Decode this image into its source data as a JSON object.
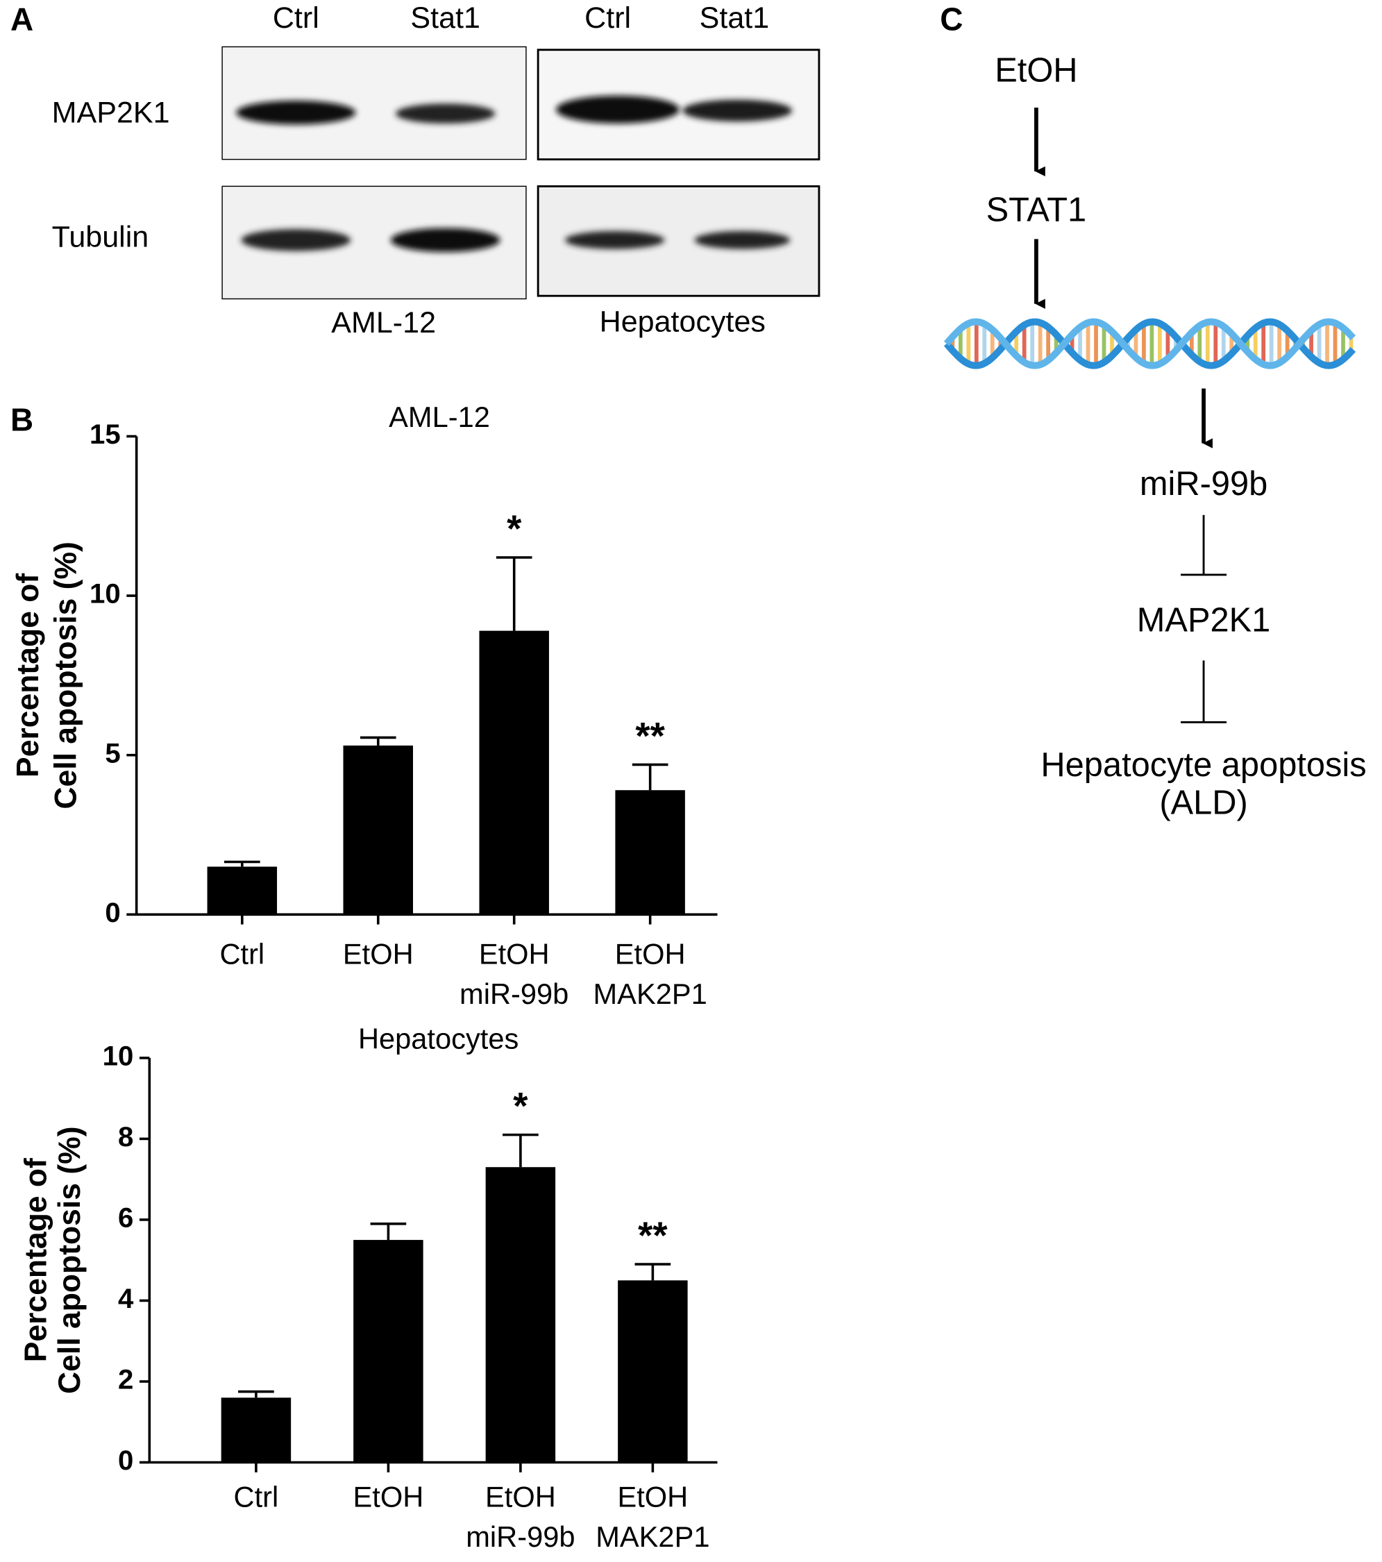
{
  "panel_a": {
    "label": "A",
    "columns": [
      "Ctrl",
      "Stat1",
      "Ctrl",
      "Stat1"
    ],
    "rows": [
      "MAP2K1",
      "Tubulin"
    ],
    "cell_lines": [
      "AML-12",
      "Hepatocytes"
    ]
  },
  "panel_b_label": "B",
  "chart_data": [
    {
      "type": "bar",
      "title": "AML-12",
      "ylabel": [
        "Percentage of",
        "Cell apoptosis (%)"
      ],
      "categories": [
        [
          "Ctrl"
        ],
        [
          "EtOH"
        ],
        [
          "EtOH",
          "miR-99b"
        ],
        [
          "EtOH",
          "MAK2P1"
        ]
      ],
      "values": [
        1.5,
        5.3,
        8.9,
        3.9
      ],
      "errors": [
        0.15,
        0.25,
        2.3,
        0.8
      ],
      "significance": [
        null,
        null,
        "*",
        "**"
      ],
      "color": "#000000",
      "ylim": [
        0,
        15
      ],
      "yticks": [
        0,
        5,
        10,
        15
      ]
    },
    {
      "type": "bar",
      "title": "Hepatocytes",
      "ylabel": [
        "Percentage of",
        "Cell apoptosis (%)"
      ],
      "categories": [
        [
          "Ctrl"
        ],
        [
          "EtOH"
        ],
        [
          "EtOH",
          "miR-99b"
        ],
        [
          "EtOH",
          "MAK2P1"
        ]
      ],
      "values": [
        1.6,
        5.5,
        7.3,
        4.5
      ],
      "errors": [
        0.15,
        0.4,
        0.8,
        0.4
      ],
      "significance": [
        null,
        null,
        "*",
        "**"
      ],
      "color": "#000000",
      "ylim": [
        0,
        10
      ],
      "yticks": [
        0,
        2,
        4,
        6,
        8,
        10
      ]
    }
  ],
  "panel_c": {
    "label": "C",
    "nodes": [
      [
        "EtOH"
      ],
      [
        "STAT1"
      ],
      [
        "miR-99b"
      ],
      [
        "MAP2K1"
      ],
      [
        "Hepatocyte apoptosis",
        "(ALD)"
      ]
    ]
  }
}
